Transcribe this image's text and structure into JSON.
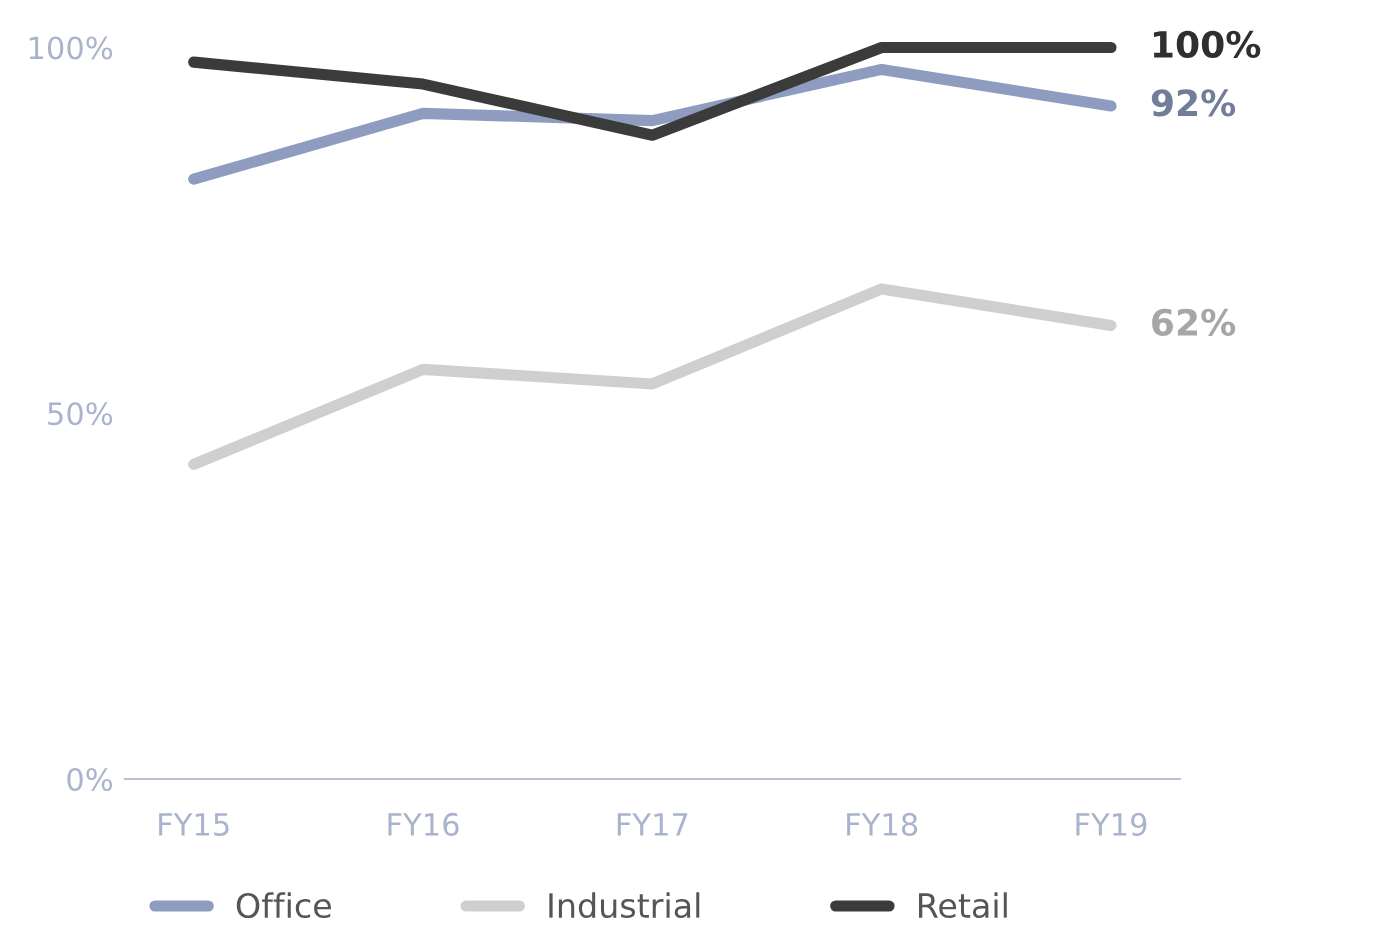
{
  "chart_data": {
    "type": "line",
    "categories": [
      "FY15",
      "FY16",
      "FY17",
      "FY18",
      "FY19"
    ],
    "series": [
      {
        "name": "Office",
        "color": "#8e9dbf",
        "values": [
          82,
          91,
          90,
          97,
          92
        ],
        "value_labels": [
          null,
          null,
          null,
          null,
          "92%"
        ]
      },
      {
        "name": "Industrial",
        "color": "#cfcfcf",
        "values": [
          43,
          56,
          54,
          67,
          62
        ],
        "value_labels": [
          null,
          null,
          null,
          null,
          "62%"
        ]
      },
      {
        "name": "Retail",
        "color": "#3b3b3b",
        "values": [
          98,
          95,
          88,
          100,
          100
        ],
        "value_labels": [
          null,
          null,
          null,
          null,
          "100%"
        ]
      }
    ],
    "ylim": [
      0,
      100
    ],
    "yticks": [
      {
        "value": 0,
        "label": "0%"
      },
      {
        "value": 50,
        "label": "50%"
      },
      {
        "value": 100,
        "label": "100%"
      }
    ],
    "grid": false,
    "legend": "bottom",
    "marker": "none",
    "line_style": "solid"
  }
}
